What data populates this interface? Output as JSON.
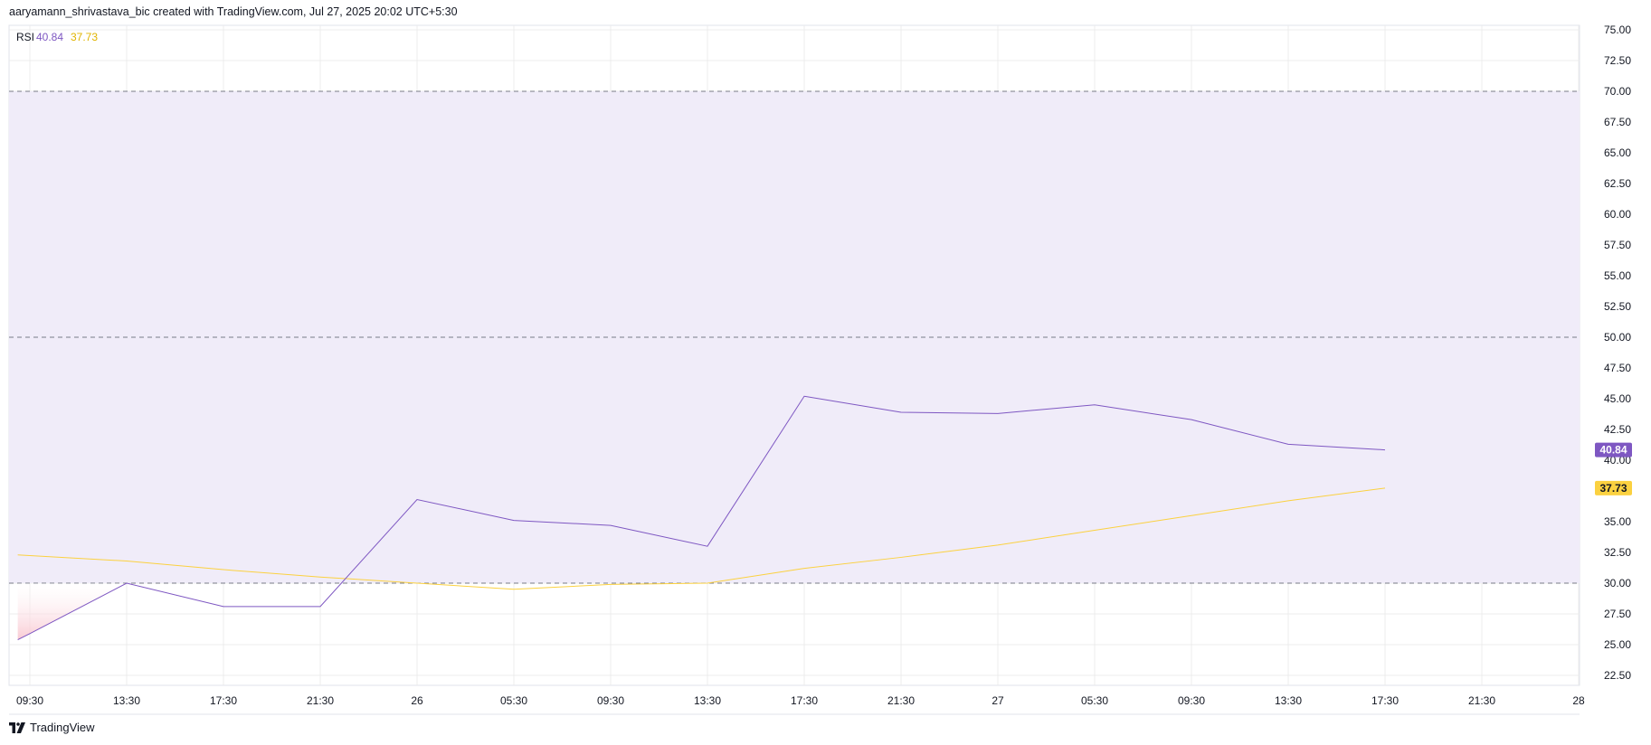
{
  "header": {
    "attribution": "aaryamann_shrivastava_bic created with TradingView.com, Jul 27, 2025 20:02 UTC+5:30"
  },
  "brand": {
    "name": "TradingView",
    "icon": "tradingview-logo-icon"
  },
  "colors": {
    "rsi": "#7e57c2",
    "rsi_ma": "#fbd140",
    "band_fill": "#f0ecf9",
    "oversold_fill": "#fde4e8",
    "grid": "#ececec",
    "level_line": "#787b86",
    "text": "#131722"
  },
  "chart_data": {
    "type": "line",
    "indicator": "RSI",
    "legend": {
      "label": "RSI",
      "rsi_value": "40.84",
      "ma_value": "37.73"
    },
    "x_ticks": [
      "09:30",
      "13:30",
      "17:30",
      "21:30",
      "26",
      "05:30",
      "09:30",
      "13:30",
      "17:30",
      "21:30",
      "27",
      "05:30",
      "09:30",
      "13:30",
      "17:30",
      "21:30",
      "28"
    ],
    "x_axis_start": 9.5,
    "x_axis_step_hours": 4,
    "y_ticks": [
      "22.50",
      "25.00",
      "27.50",
      "30.00",
      "32.50",
      "35.00",
      "37.50",
      "40.00",
      "42.50",
      "45.00",
      "47.50",
      "50.00",
      "52.50",
      "55.00",
      "57.50",
      "60.00",
      "62.50",
      "65.00",
      "67.50",
      "70.00",
      "72.50",
      "75.00"
    ],
    "ylim": [
      22.5,
      75
    ],
    "levels": {
      "upper": 70,
      "middle": 50,
      "lower": 30
    },
    "series": [
      {
        "name": "RSI",
        "x_hours": [
          9,
          9.5,
          13.5,
          17.5,
          21.5,
          25.5,
          29.5,
          33.5,
          37.5,
          41.5,
          45.5,
          49.5,
          53.5,
          57.5,
          61.5,
          65.5
        ],
        "values": [
          25.4,
          25.9,
          30.0,
          28.1,
          28.1,
          36.8,
          35.1,
          34.7,
          33.0,
          45.2,
          43.9,
          43.8,
          44.5,
          43.3,
          41.3,
          40.84
        ]
      },
      {
        "name": "RSI MA",
        "x_hours": [
          9,
          13.5,
          17.5,
          21.5,
          25.5,
          29.5,
          33.5,
          37.5,
          41.5,
          45.5,
          49.5,
          53.5,
          57.5,
          61.5,
          65.5
        ],
        "values": [
          32.3,
          31.8,
          31.1,
          30.5,
          30.0,
          29.5,
          29.9,
          30.0,
          31.2,
          32.1,
          33.1,
          34.3,
          35.5,
          36.7,
          37.73
        ]
      }
    ],
    "last_labels": {
      "rsi": "40.84",
      "ma": "37.73"
    },
    "grid": true,
    "legend_position": "top-left"
  }
}
